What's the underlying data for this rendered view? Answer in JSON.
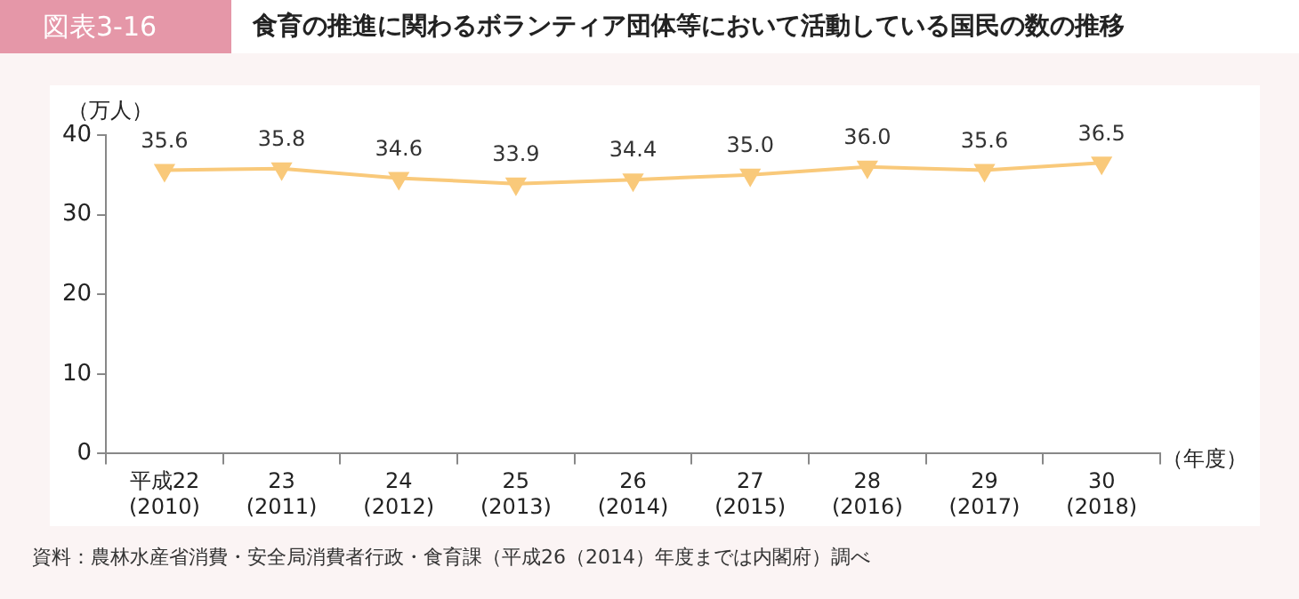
{
  "chart_data": {
    "type": "line",
    "title": "食育の推進に関わるボランティア団体等において活動している国民の数の推移",
    "annotations": [
      "図表3-16",
      "資料：農林水産省消費・安全局消費者行政・食育課（平成26（2014）年度までは内閣府）調べ"
    ],
    "ylabel": "（万人）",
    "xlabel": "（年度）",
    "categories": [
      "平成22\n(2010)",
      "23\n(2011)",
      "24\n(2012)",
      "25\n(2013)",
      "26\n(2014)",
      "27\n(2015)",
      "28\n(2016)",
      "29\n(2017)",
      "30\n(2018)"
    ],
    "series": [
      {
        "color": "#f9c97a",
        "values": [
          35.6,
          35.8,
          34.6,
          33.9,
          34.4,
          35.0,
          36.0,
          35.6,
          36.5
        ],
        "value_labels": [
          "35.6",
          "35.8",
          "34.6",
          "33.9",
          "34.4",
          "35.0",
          "36.0",
          "35.6",
          "36.5"
        ]
      }
    ],
    "ylim": [
      0,
      40
    ],
    "yticks": [
      0,
      10,
      20,
      30,
      40
    ],
    "grid": false,
    "legend": false,
    "marker": "triangle",
    "line_style": "solid"
  }
}
